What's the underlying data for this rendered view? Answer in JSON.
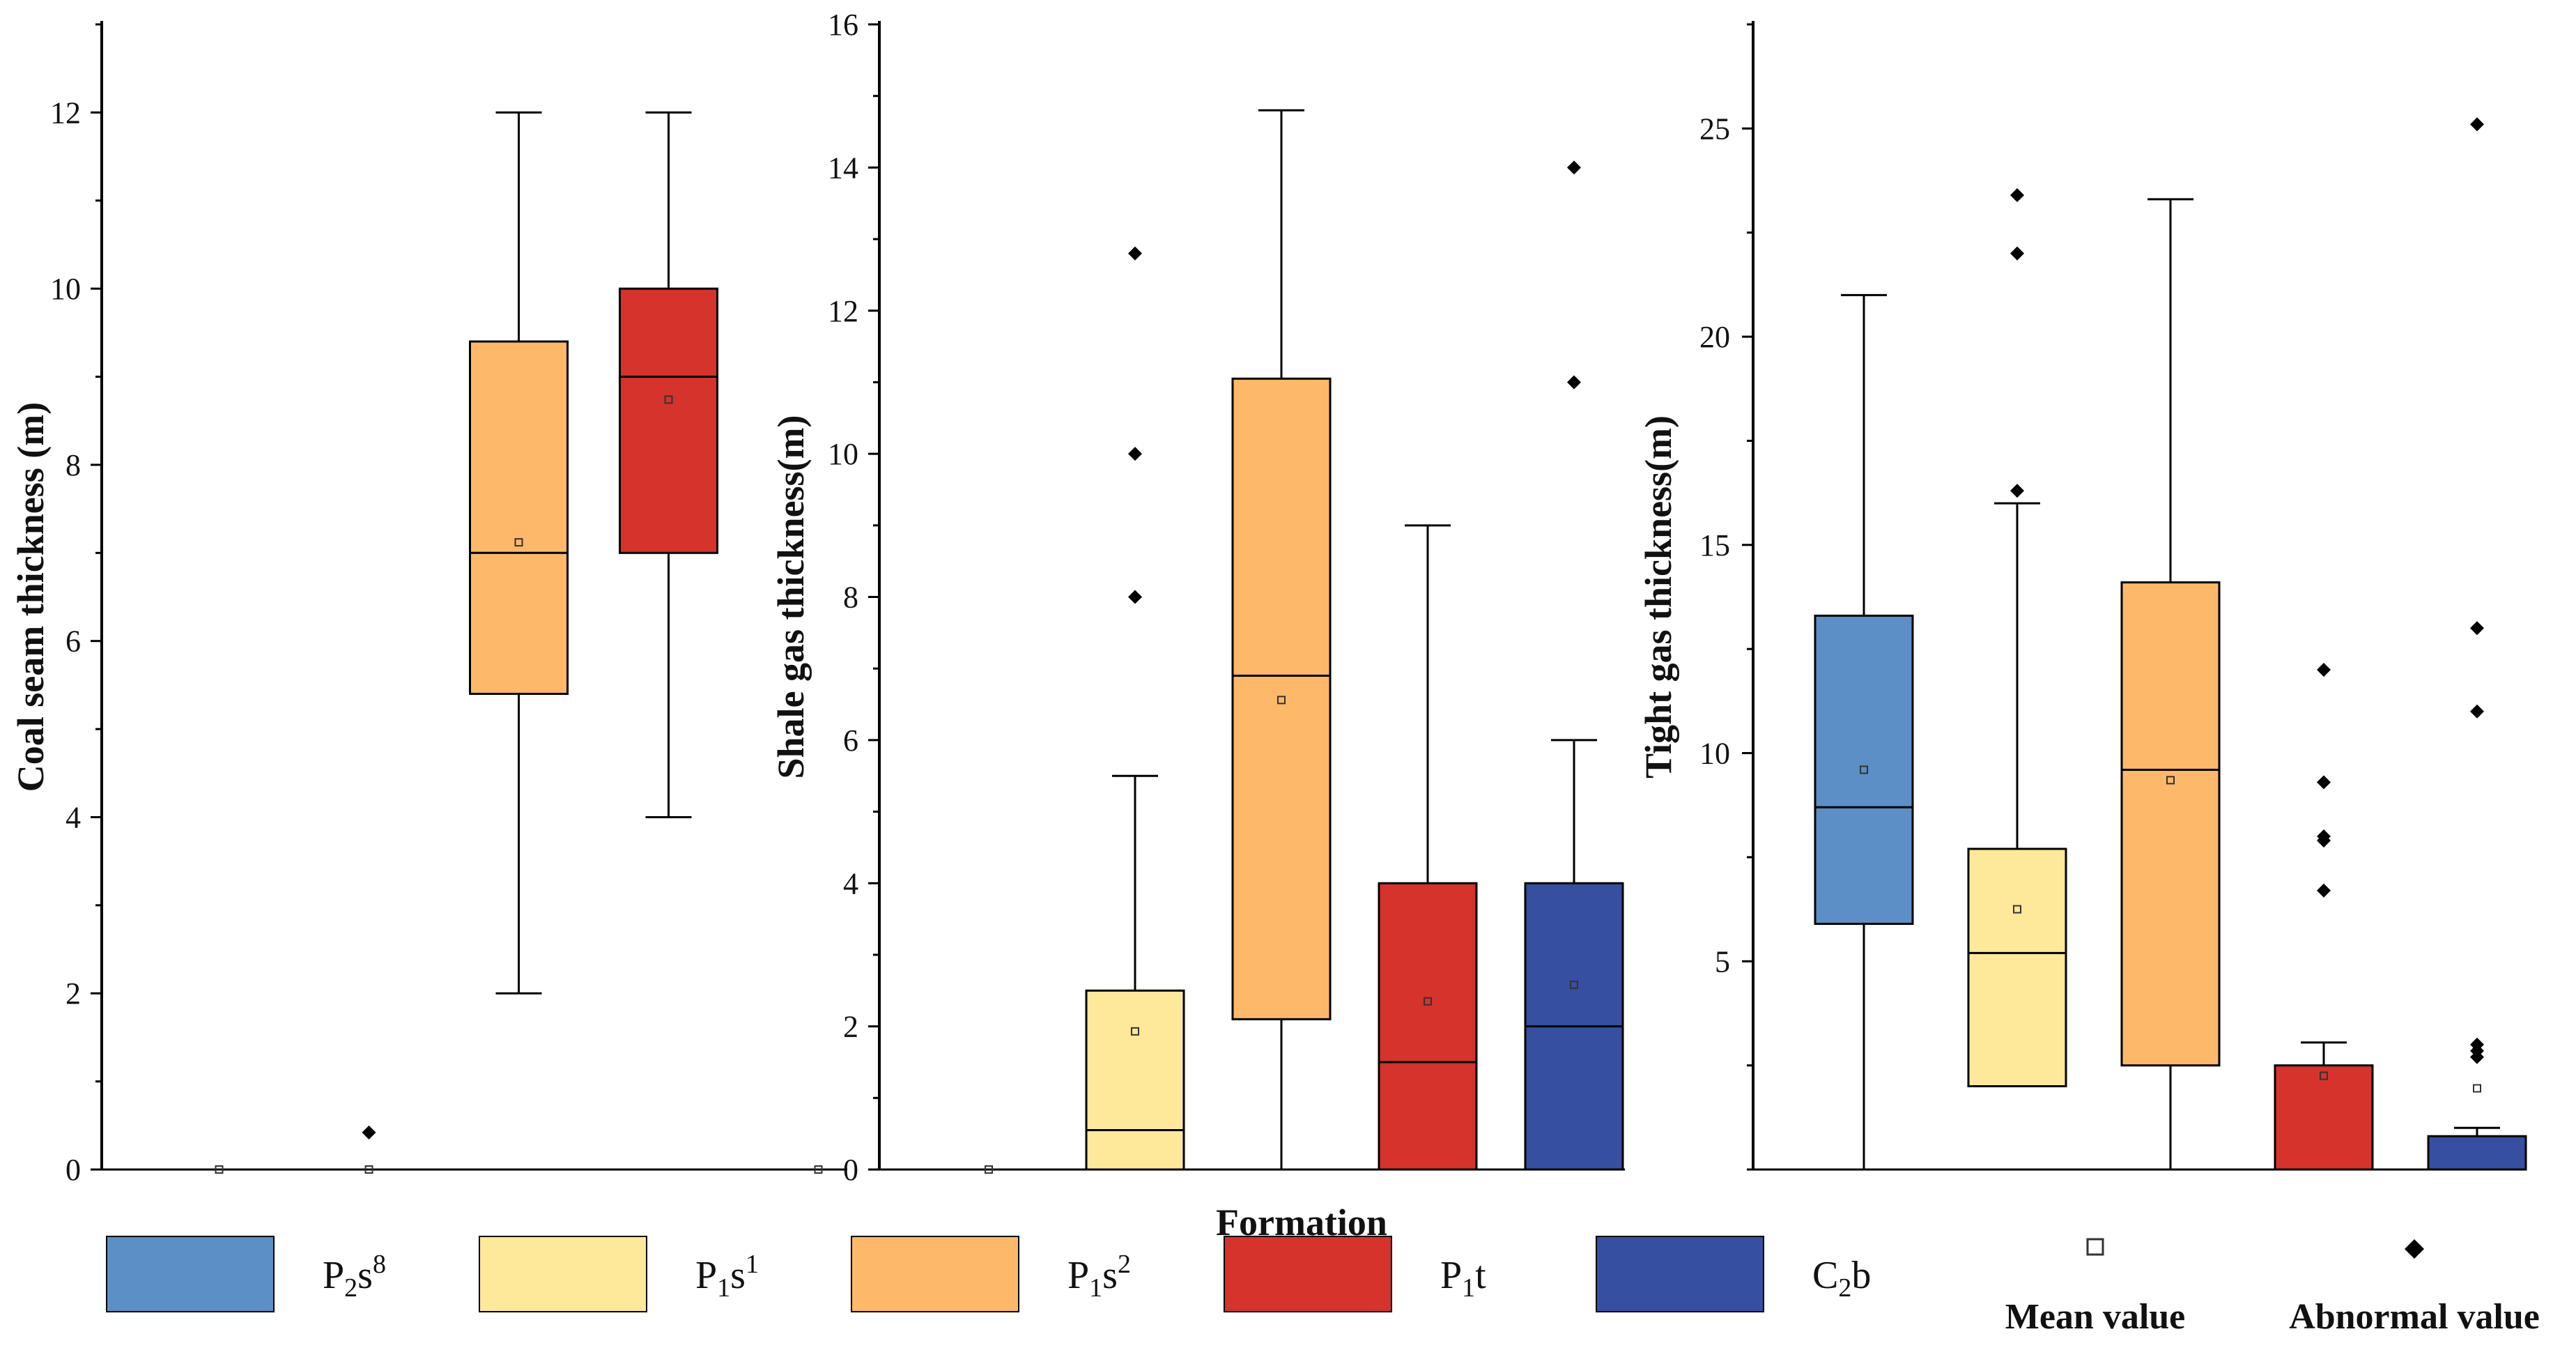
{
  "colors": {
    "P2s8": "#5b8fc5",
    "P1s1": "#fee89a",
    "P1s2": "#fdb86a",
    "P1t": "#d5332c",
    "C2b": "#364fa0"
  },
  "xlabel": "Formation",
  "legend": {
    "series": [
      {
        "key": "P2s8",
        "base": "P",
        "sub": "2",
        "mid": "s",
        "sup": "8",
        "tail": ""
      },
      {
        "key": "P1s1",
        "base": "P",
        "sub": "1",
        "mid": "s",
        "sup": "1",
        "tail": ""
      },
      {
        "key": "P1s2",
        "base": "P",
        "sub": "1",
        "mid": "s",
        "sup": "2",
        "tail": ""
      },
      {
        "key": "P1t",
        "base": "P",
        "sub": "1",
        "mid": "t",
        "sup": "",
        "tail": ""
      },
      {
        "key": "C2b",
        "base": "C",
        "sub": "2",
        "mid": "b",
        "sup": "",
        "tail": ""
      }
    ],
    "mean_label": "Mean value",
    "outlier_label": "Abnormal value"
  },
  "chart_data": [
    {
      "type": "box",
      "ylabel": "Coal seam thickness (m)",
      "ylim": [
        0,
        13
      ],
      "yticks": [
        0,
        2,
        4,
        6,
        8,
        10,
        12
      ],
      "categories": [
        "P2s8",
        "P1s1",
        "P1s2",
        "P1t",
        "C2b"
      ],
      "boxes": [
        {
          "series": "P2s8",
          "min": 0,
          "q1": 0,
          "median": 0,
          "q3": 0,
          "max": 0,
          "mean": 0,
          "outliers": []
        },
        {
          "series": "P1s1",
          "min": 0,
          "q1": 0,
          "median": 0,
          "q3": 0,
          "max": 0,
          "mean": 0,
          "outliers": [
            0.42
          ]
        },
        {
          "series": "P1s2",
          "min": 2,
          "q1": 5.4,
          "median": 7,
          "q3": 9.4,
          "max": 12,
          "mean": 7.12,
          "outliers": []
        },
        {
          "series": "P1t",
          "min": 4,
          "q1": 7,
          "median": 9,
          "q3": 10,
          "max": 12,
          "mean": 8.74,
          "outliers": []
        },
        {
          "series": "C2b",
          "min": 0,
          "q1": 0,
          "median": 0,
          "q3": 0,
          "max": 0,
          "mean": 0,
          "outliers": []
        }
      ]
    },
    {
      "type": "box",
      "ylabel": "Shale gas thickness(m)",
      "ylim": [
        0,
        16
      ],
      "yticks": [
        0,
        2,
        4,
        6,
        8,
        10,
        12,
        14,
        16
      ],
      "categories": [
        "P2s8",
        "P1s1",
        "P1s2",
        "P1t",
        "C2b"
      ],
      "boxes": [
        {
          "series": "P2s8",
          "min": 0,
          "q1": 0,
          "median": 0,
          "q3": 0,
          "max": 0,
          "mean": 0,
          "outliers": []
        },
        {
          "series": "P1s1",
          "min": 0,
          "q1": 0,
          "median": 0.55,
          "q3": 2.5,
          "max": 5.5,
          "mean": 1.93,
          "outliers": [
            8,
            10,
            12.8
          ]
        },
        {
          "series": "P1s2",
          "min": 0,
          "q1": 2.1,
          "median": 6.9,
          "q3": 11.05,
          "max": 14.8,
          "mean": 6.56,
          "outliers": []
        },
        {
          "series": "P1t",
          "min": 0,
          "q1": 0,
          "median": 1.5,
          "q3": 4,
          "max": 9,
          "mean": 2.35,
          "outliers": []
        },
        {
          "series": "C2b",
          "min": 0,
          "q1": 0,
          "median": 2,
          "q3": 4,
          "max": 6,
          "mean": 2.58,
          "outliers": [
            11,
            14
          ]
        }
      ]
    },
    {
      "type": "box",
      "ylabel": "Tight gas thickness(m)",
      "ylim": [
        0,
        27.5
      ],
      "yticks": [
        5,
        10,
        15,
        20,
        25
      ],
      "categories": [
        "P2s8",
        "P1s1",
        "P1s2",
        "P1t",
        "C2b"
      ],
      "boxes": [
        {
          "series": "P2s8",
          "min": 0,
          "q1": 5.9,
          "median": 8.7,
          "q3": 13.3,
          "max": 21,
          "mean": 9.6,
          "outliers": []
        },
        {
          "series": "P1s1",
          "min": 2,
          "q1": 2,
          "median": 5.2,
          "q3": 7.7,
          "max": 16,
          "mean": 6.25,
          "outliers": [
            16.3,
            22,
            23.4
          ]
        },
        {
          "series": "P1s2",
          "min": 0,
          "q1": 2.5,
          "median": 9.6,
          "q3": 14.1,
          "max": 23.3,
          "mean": 9.35,
          "outliers": []
        },
        {
          "series": "P1t",
          "min": 0,
          "q1": 0,
          "median": 0,
          "q3": 2.5,
          "max": 3.05,
          "mean": 2.25,
          "outliers": [
            6.7,
            7.9,
            8,
            9.3,
            12
          ]
        },
        {
          "series": "C2b",
          "min": 0,
          "q1": 0,
          "median": 0,
          "q3": 0.8,
          "max": 1.0,
          "mean": 1.95,
          "outliers": [
            2.7,
            2.85,
            3.0,
            11,
            13,
            25.1
          ]
        }
      ]
    }
  ]
}
